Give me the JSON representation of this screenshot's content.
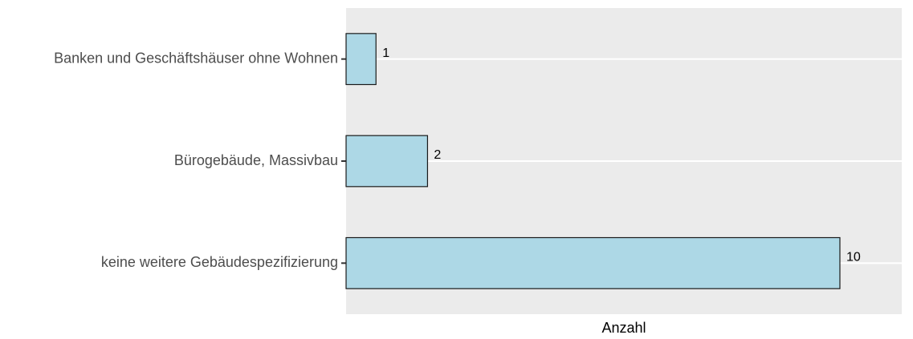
{
  "chart_data": {
    "type": "bar",
    "orientation": "horizontal",
    "categories": [
      "Banken und Geschäftshäuser ohne Wohnen",
      "Bürogebäude, Massivbau",
      "keine weitere Gebäudespezifizierung"
    ],
    "values": [
      1,
      2,
      10
    ],
    "color": "#add8e6",
    "xlabel": "Anzahl",
    "xlim": [
      0.42,
      11.2
    ],
    "grid": true,
    "value_labels_shown": true
  }
}
